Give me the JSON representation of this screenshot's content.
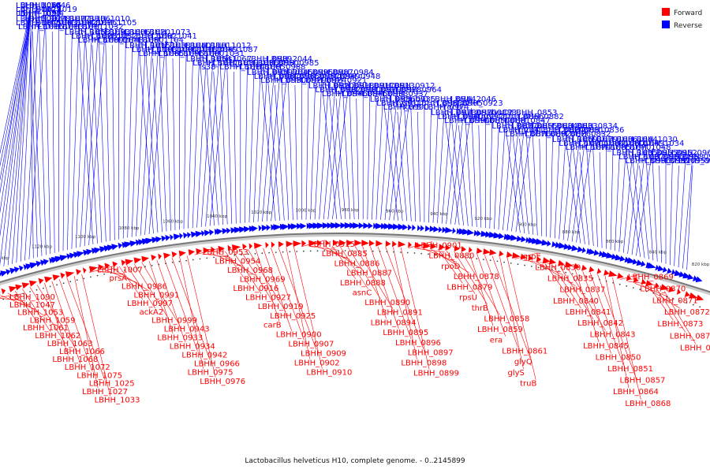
{
  "caption": "Lactobacillus helveticus H10, complete genome. - 0..2145899",
  "legend": [
    {
      "label": "Forward",
      "color": "#ff0000"
    },
    {
      "label": "Reverse",
      "color": "#0000ff"
    }
  ],
  "colors": {
    "forward": "#ff0000",
    "reverse": "#0000ff",
    "backbone": "#777777"
  },
  "ticks": [
    "820 kbp",
    "840 kbp",
    "860 kbp",
    "880 kbp",
    "900 kbp",
    "920 kbp",
    "940 kbp",
    "960 kbp",
    "980 kbp",
    "1000 kbp",
    "1020 kbp",
    "1040 kbp",
    "1060 kbp",
    "1080 kbp",
    "1100 kbp",
    "1120 kbp",
    "1140 kbp",
    "1160 kbp"
  ],
  "reverse_labels": [
    "LBHH_1064",
    "LBHH_1029",
    "LBHH_1057",
    "LBHH_1026",
    "LBHH_1023",
    "LBHH_1097",
    "LBHH_1056",
    "LBHH_1022",
    "LBHH_1095",
    "LBHH_1055",
    "LBHH_1021",
    "LBHH_1094",
    "LBHH_1046",
    "LBHH_1019",
    "LBHH_1082",
    "LBHH_1045",
    "LBHH_1016",
    "LBHH_1078",
    "LBHH_1043",
    "LBHH_1013",
    "LBHH_1077",
    "LBHH_1042",
    "LBHH_1011",
    "LBHH_1106",
    "LBHH_1076",
    "LBHH_1032",
    "LBHH_1010",
    "LBHH_1105",
    "LBHH_1058",
    "LBHH_1028",
    "LBHH_1009",
    "LBHH_1093",
    "LBHH_1052",
    "LBHH_2048",
    "LBHH_1006",
    "cofE",
    "LBHH_1050",
    "LBHH_1020",
    "LBHH_1002",
    "LBHH_1104",
    "LBHH_1073",
    "LBHH_1041",
    "LBHH_1015",
    "LBHH_1103",
    "LBHH_1065",
    "LBHH_1038",
    "LBHH_1004",
    "LBHH_1096",
    "LBHH_1040",
    "LBHH_1018",
    "LBHH_1000",
    "LBHH_1101",
    "LBHH_2049",
    "LBHH_1031",
    "LBHH_1012",
    "LBHH_1087",
    "LBHH_1054",
    "LBHH_1017",
    "is38",
    "LBHH_1067",
    "LBHH_1039",
    "LBHH_1014",
    "is1",
    "LBHH_1036",
    "LBHH_1005",
    "LBHH_0989",
    "LBHH_0950",
    "LBHH_0988",
    "LBHH_2044",
    "LBHH_0985",
    "LBHH_0939",
    "LBHH_0967",
    "LBHH_0930",
    "LBHH_2045",
    "LBHH_0965",
    "LBHH_0929",
    "LBHH_0995",
    "LBHH_0957",
    "LBHH_0924",
    "LBHH_0987",
    "LBHH_0949",
    "LBHH_0921",
    "LBHH_0984",
    "LBHH_0948",
    "LBHH_0920",
    "LBHH_0982",
    "LBHH_0946",
    "LBHH_0918",
    "LBHH_0980",
    "LBHH_0945",
    "LBHH_0917",
    "LBHH_0979",
    "LBHH_0938",
    "LBHH_0913",
    "LBHH_0978",
    "LBHH_0937",
    "LBHH_0912",
    "LBHH_0964",
    "LBHH_0936",
    "LBHH_0911",
    "LBHH_0990",
    "LBHH_0935",
    "lysR",
    "xerS",
    "ubiD",
    "LBHH_0963",
    "LBHH_0974",
    "LBHH_0944",
    "LBHH_0905",
    "recU",
    "LBHH_2046",
    "LBHH_0923",
    "LBHH_0973",
    "LBHH_0940",
    "LBHH_0994",
    "LBHH_0970",
    "LBHH_0992",
    "LBHH_0854",
    "LBHH_0883",
    "thrC",
    "LBHH_0881",
    "lysC2",
    "LBHH_0866",
    "LBHH_0847",
    "LBHH_0853",
    "LBHH_0882",
    "LBHH_0877",
    "LBHH_2041",
    "LBHH_0876",
    "LBHH_0855",
    "mutT",
    "LBHH_0892",
    "LBHH_0884",
    "LBHH_0824",
    "LBHH_0826",
    "LBHH_0833",
    "LBHH_0831",
    "LBHH_0832",
    "LBHH_0834",
    "LBHH_0836",
    "LBHH_1069",
    "LBHH_1071",
    "LBHH_1074",
    "LBHH_1079",
    "LBHH_1084",
    "LBHH_1085",
    "LBHH_1086",
    "LBHH_1060",
    "LBHH_1070",
    "LBHH_1044",
    "LBHH_1049",
    "LBHH_1048",
    "LBHH_1030",
    "LBHH_1034",
    "LBHH_1035",
    "LBHH_1037",
    "LBHH_0996",
    "LBHH_0955",
    "LBHH_0956",
    "LBHH_0951",
    "LBHH_0952",
    "LBHH_0958",
    "LBHH_0959",
    "LBHH_0960",
    "LBHH_0961",
    "LBHH_0962"
  ],
  "forward_labels": [
    "LBHH_1090",
    "LBHH_1047",
    "LBHH_1053",
    "LBHH_1059",
    "LBHH_1061",
    "LBHH_1062",
    "LBHH_1063",
    "LBHH_1066",
    "LBHH_1068",
    "LBHH_1072",
    "LBHH_1075",
    "LBHH_1025",
    "LBHH_1027",
    "LBHH_1033",
    "LBHH_1007",
    "prsA",
    "LBHH_0986",
    "LBHH_0991",
    "LBHH_0997",
    "ackA2",
    "LBHH_0999",
    "LBHH_0943",
    "LBHH_0933",
    "LBHH_0934",
    "LBHH_0942",
    "LBHH_0966",
    "LBHH_0975",
    "LBHH_0976",
    "LBHH_0953",
    "LBHH_0954",
    "LBHH_0968",
    "LBHH_0969",
    "LBHH_0916",
    "LBHH_0927",
    "LBHH_0919",
    "LBHH_0925",
    "carB",
    "LBHH_0900",
    "LBHH_0907",
    "LBHH_0909",
    "LBHH_0902",
    "LBHH_0910",
    "LBHH_0915",
    "LBHH_0885",
    "LBHH_0886",
    "LBHH_0887",
    "LBHH_0888",
    "asnC",
    "LBHH_0890",
    "LBHH_0891",
    "LBHH_0894",
    "LBHH_0895",
    "LBHH_0896",
    "LBHH_0897",
    "LBHH_0898",
    "LBHH_0899",
    "LBHH_0901",
    "LBHH_0880",
    "rpoD",
    "LBHH_0878",
    "LBHH_0879",
    "rpsU",
    "thrB",
    "LBHH_0858",
    "LBHH_0859",
    "era",
    "LBHH_0861",
    "glyQ",
    "glyS",
    "truB",
    "grpE",
    "LBHH_0830",
    "LBHH_0835",
    "LBHH_0837",
    "LBHH_0840",
    "LBHH_0841",
    "LBHH_0842",
    "LBHH_0843",
    "LBHH_0845",
    "LBHH_0850",
    "LBHH_0851",
    "LBHH_0857",
    "LBHH_0864",
    "LBHH_0868",
    "LBHH_0869",
    "LBHH_0870",
    "LBHH_0871",
    "LBHH_0872",
    "LBHH_0873",
    "LBHH_0874",
    "LBHH_0875"
  ]
}
